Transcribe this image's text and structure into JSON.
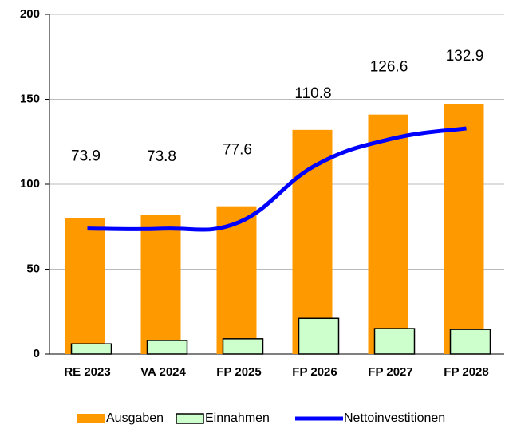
{
  "chart_data": {
    "type": "bar_line",
    "categories": [
      "RE 2023",
      "VA 2024",
      "FP 2025",
      "FP 2026",
      "FP 2027",
      "FP 2028"
    ],
    "series": [
      {
        "name": "Ausgaben",
        "type": "bar",
        "color": "#ff9900",
        "values": [
          80,
          82,
          87,
          132,
          141,
          147
        ]
      },
      {
        "name": "Einnahmen",
        "type": "bar",
        "color": "#ccffcc",
        "values": [
          6,
          8,
          9,
          21,
          15,
          14.5
        ]
      },
      {
        "name": "Nettoinvestitionen",
        "type": "line",
        "color": "#0000ff",
        "values": [
          73.9,
          73.8,
          77.6,
          110.8,
          126.6,
          132.9
        ]
      }
    ],
    "ylim": [
      0,
      200
    ],
    "yticks": [
      0,
      50,
      100,
      150,
      200
    ],
    "grid": true,
    "legend": "bottom"
  }
}
